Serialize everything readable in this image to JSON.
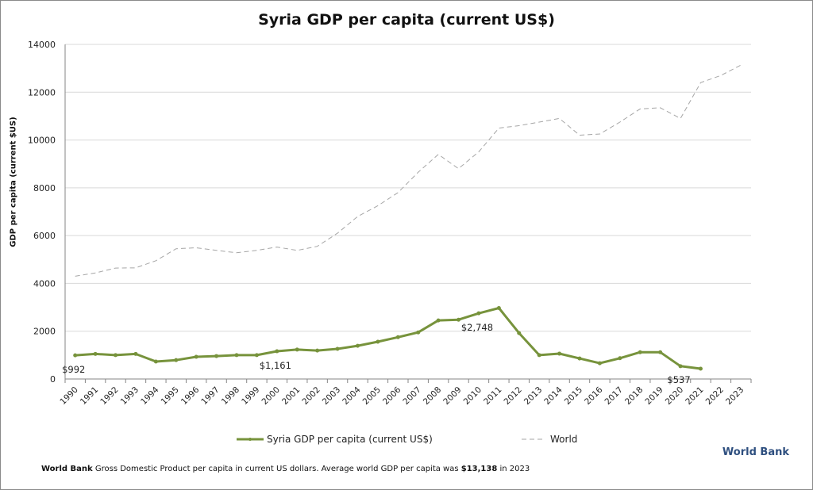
{
  "title": "Syria GDP per capita (current US$)",
  "chart_data": {
    "type": "line",
    "title": "Syria GDP per capita (current US$)",
    "xlabel": "",
    "ylabel": "GDP per capita (current $US)",
    "ylim": [
      0,
      14000
    ],
    "yticks": [
      0,
      2000,
      4000,
      6000,
      8000,
      10000,
      12000,
      14000
    ],
    "grid": "horizontal",
    "legend": "bottom",
    "categories": [
      "1990",
      "1991",
      "1992",
      "1993",
      "1994",
      "1995",
      "1996",
      "1997",
      "1998",
      "1999",
      "2000",
      "2001",
      "2002",
      "2003",
      "2004",
      "2005",
      "2006",
      "2007",
      "2008",
      "2009",
      "2010",
      "2011",
      "2012",
      "2013",
      "2014",
      "2015",
      "2016",
      "2017",
      "2018",
      "2019",
      "2020",
      "2021",
      "2022",
      "2023"
    ],
    "series": [
      {
        "name": "Syria GDP per capita (current US$)",
        "color": "#77933c",
        "style": "solid-markers",
        "values": [
          992,
          1050,
          1000,
          1050,
          730,
          790,
          930,
          960,
          1000,
          1000,
          1161,
          1230,
          1190,
          1260,
          1390,
          1560,
          1750,
          1950,
          2450,
          2480,
          2748,
          2970,
          1920,
          1000,
          1060,
          860,
          660,
          870,
          1120,
          1120,
          537,
          430,
          null,
          null
        ]
      },
      {
        "name": "World",
        "color": "#a6a6a6",
        "style": "dashed",
        "values": [
          4300,
          4440,
          4640,
          4650,
          4950,
          5450,
          5490,
          5380,
          5280,
          5380,
          5520,
          5380,
          5550,
          6100,
          6800,
          7250,
          7800,
          8650,
          9400,
          8800,
          9500,
          10500,
          10600,
          10750,
          10900,
          10200,
          10250,
          10750,
          11300,
          11350,
          10900,
          12400,
          12700,
          13138
        ]
      }
    ],
    "annotations": [
      {
        "category": "1990",
        "text": "$992"
      },
      {
        "category": "2000",
        "text": "$1,161"
      },
      {
        "category": "2010",
        "text": "$2,748"
      },
      {
        "category": "2020",
        "text": "$537"
      }
    ]
  },
  "legend": {
    "syria": "Syria GDP per capita (current US$)",
    "world": "World"
  },
  "brand": "World Bank",
  "footnote": {
    "source": "World Bank",
    "text": "Gross Domestic Product per capita in current US dollars.  Average world GDP per capita was ",
    "value": "$13,138",
    "suffix": " in 2023"
  }
}
